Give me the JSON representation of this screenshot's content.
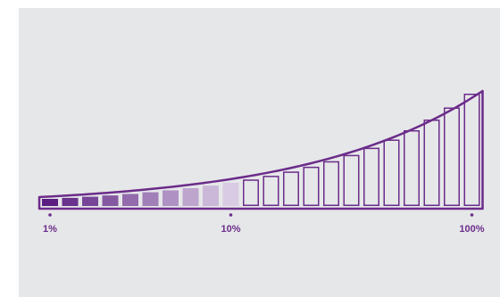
{
  "colors": {
    "background": "#e6e7e9",
    "outline": "#6b2c8a",
    "fill_darkest": "#5b1f82",
    "fill_lightest": "#d9cbe3"
  },
  "scale": {
    "total_bars": 22,
    "filled_bars": 10,
    "ticks": [
      {
        "label": "1%",
        "bar_index": 0
      },
      {
        "label": "10%",
        "bar_index": 9
      },
      {
        "label": "100%",
        "bar_index": 21
      }
    ]
  }
}
